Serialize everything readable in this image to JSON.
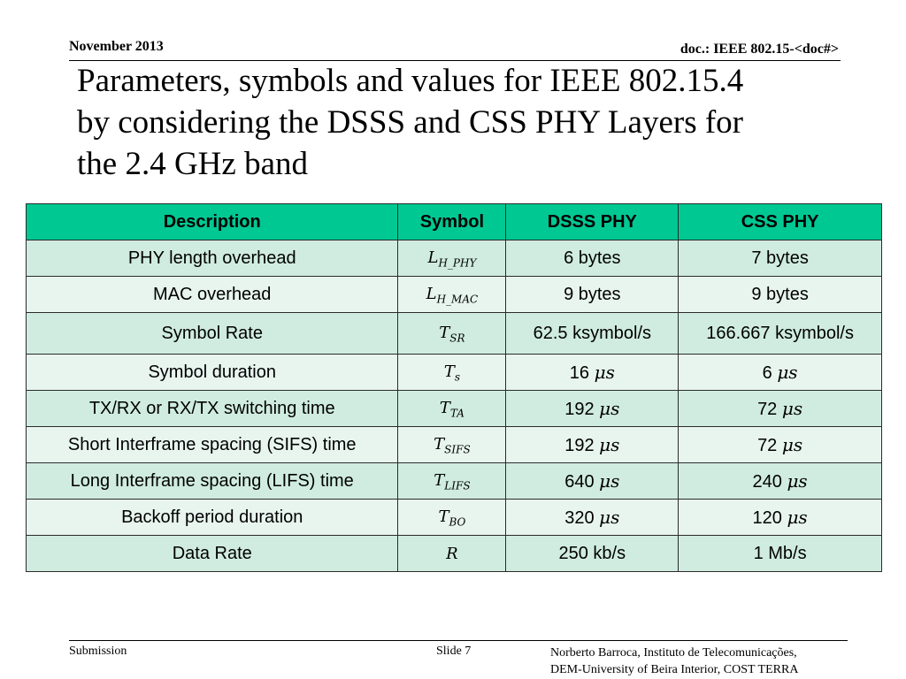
{
  "header": {
    "date": "November 2013",
    "doc": "doc.: IEEE 802.15-<doc#>"
  },
  "title": {
    "line1": "Parameters, symbols and values for IEEE 802.15.4",
    "line2": "by considering the DSSS and CSS PHY Layers for",
    "line3": "the 2.4 GHz band"
  },
  "table": {
    "headers": [
      "Description",
      "Symbol",
      "DSSS PHY",
      "CSS PHY"
    ],
    "rows": [
      {
        "description": "PHY length overhead",
        "sym_base": "L",
        "sym_sub": "H_PHY",
        "dsss_value": "6 bytes",
        "dsss_unit": "",
        "css_value": "7 bytes",
        "css_unit": ""
      },
      {
        "description": "MAC overhead",
        "sym_base": "L",
        "sym_sub": "H_MAC",
        "dsss_value": "9 bytes",
        "dsss_unit": "",
        "css_value": "9 bytes",
        "css_unit": ""
      },
      {
        "description": "Symbol Rate",
        "sym_base": "T",
        "sym_sub": "SR",
        "dsss_value": "62.5 ksymbol/s",
        "dsss_unit": "",
        "css_value": "166.667 ksymbol/s",
        "css_unit": ""
      },
      {
        "description": "Symbol duration",
        "sym_base": "T",
        "sym_sub": "s",
        "dsss_value": "16",
        "dsss_unit": "μs",
        "css_value": "6",
        "css_unit": "μs"
      },
      {
        "description": "TX/RX or RX/TX switching time",
        "sym_base": "T",
        "sym_sub": "TA",
        "dsss_value": "192",
        "dsss_unit": "μs",
        "css_value": "72",
        "css_unit": "μs"
      },
      {
        "description": "Short Interframe spacing (SIFS) time",
        "sym_base": "T",
        "sym_sub": "SIFS",
        "dsss_value": "192",
        "dsss_unit": "μs",
        "css_value": "72",
        "css_unit": "μs"
      },
      {
        "description": "Long Interframe spacing (LIFS) time",
        "sym_base": "T",
        "sym_sub": "LIFS",
        "dsss_value": "640",
        "dsss_unit": "μs",
        "css_value": "240",
        "css_unit": "μs"
      },
      {
        "description": "Backoff period duration",
        "sym_base": "T",
        "sym_sub": "BO",
        "dsss_value": "320",
        "dsss_unit": "μs",
        "css_value": "120",
        "css_unit": "μs"
      },
      {
        "description": "Data Rate",
        "sym_base": "R",
        "sym_sub": "",
        "dsss_value": "250 kb/s",
        "dsss_unit": "",
        "css_value": "1 Mb/s",
        "css_unit": ""
      }
    ]
  },
  "colors": {
    "header_bg": "#00c893",
    "row_odd_bg": "#d0ece1",
    "row_even_bg": "#e8f5ef"
  },
  "footer": {
    "left": "Submission",
    "middle": "Slide 7",
    "right_line1": "Norberto Barroca, Instituto de Telecomunicações,",
    "right_line2": "DEM-University of Beira Interior, COST TERRA"
  }
}
